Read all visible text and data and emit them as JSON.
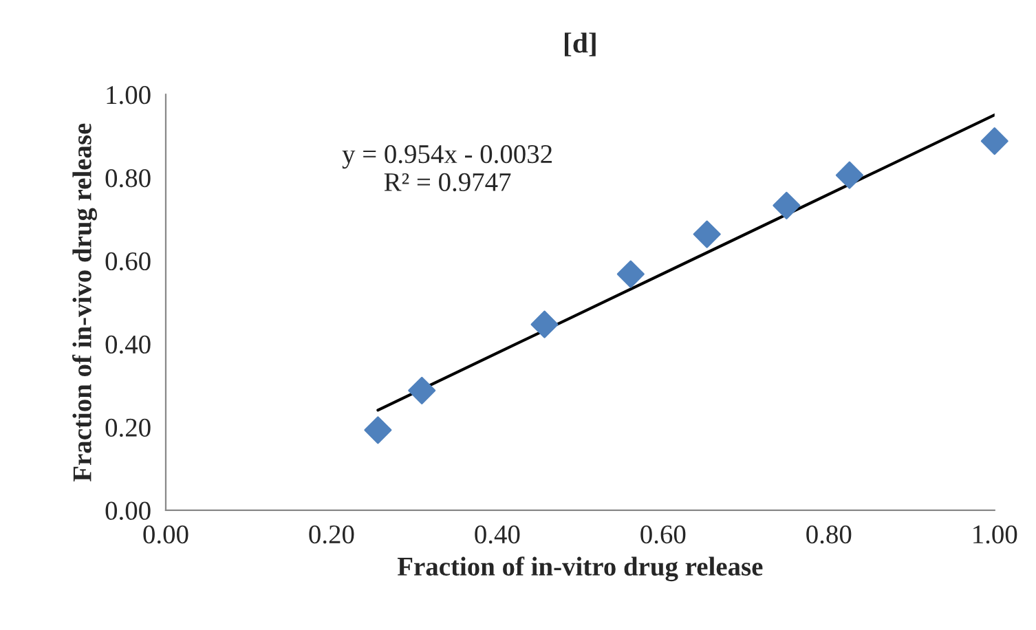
{
  "chart_data": {
    "type": "scatter",
    "title": "[d]",
    "xlabel": "Fraction of in-vitro drug release",
    "ylabel": "Fraction of in-vivo drug release",
    "series": [
      {
        "color": "#4f81bd",
        "marker": "diamond",
        "x": [
          0.256,
          0.309,
          0.457,
          0.561,
          0.653,
          0.749,
          0.825,
          1.0
        ],
        "values": [
          0.193,
          0.288,
          0.447,
          0.568,
          0.664,
          0.733,
          0.806,
          0.888
        ]
      },
      {
        "type": "line",
        "color": "#000000",
        "marker": "none",
        "x": [
          0.256,
          1.0
        ],
        "values": [
          0.241,
          0.951
        ]
      }
    ],
    "annotations": [
      "y = 0.954x - 0.0032\nR² = 0.9747"
    ],
    "xlim": [
      0,
      1
    ],
    "xticks": [
      {
        "value": 0,
        "label": "0.00"
      },
      {
        "value": 0.2,
        "label": "0.20"
      },
      {
        "value": 0.4,
        "label": "0.40"
      },
      {
        "value": 0.6,
        "label": "0.60"
      },
      {
        "value": 0.8,
        "label": "0.80"
      },
      {
        "value": 1,
        "label": "1.00"
      }
    ],
    "ylim": [
      0,
      1
    ],
    "yticks": [
      {
        "value": 0,
        "label": "0.00"
      },
      {
        "value": 0.2,
        "label": "0.20"
      },
      {
        "value": 0.4,
        "label": "0.40"
      },
      {
        "value": 0.6,
        "label": "0.60"
      },
      {
        "value": 0.8,
        "label": "0.80"
      },
      {
        "value": 1,
        "label": "1.00"
      }
    ],
    "grid": false,
    "legend": false
  }
}
